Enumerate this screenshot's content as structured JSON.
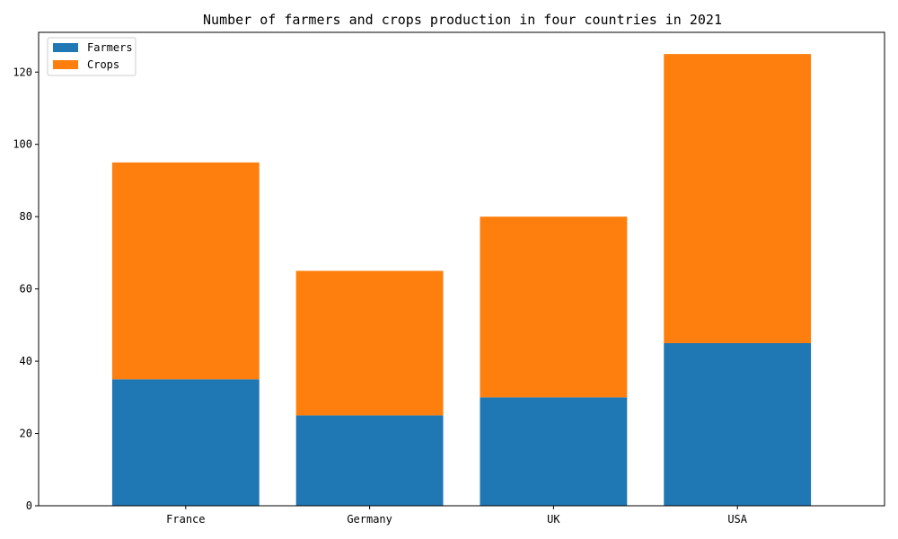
{
  "chart_data": {
    "type": "bar",
    "stacked": true,
    "title": "Number of farmers and crops production in four countries in 2021",
    "xlabel": "",
    "ylabel": "",
    "categories": [
      "France",
      "Germany",
      "UK",
      "USA"
    ],
    "series": [
      {
        "name": "Farmers",
        "values": [
          35,
          25,
          30,
          45
        ],
        "color": "#1f77b4"
      },
      {
        "name": "Crops",
        "values": [
          60,
          40,
          50,
          80
        ],
        "color": "#ff7f0e"
      }
    ],
    "ylim": [
      0,
      131
    ],
    "yticks": [
      0,
      20,
      40,
      60,
      80,
      100,
      120
    ],
    "legend_position": "top-left",
    "grid": false
  }
}
